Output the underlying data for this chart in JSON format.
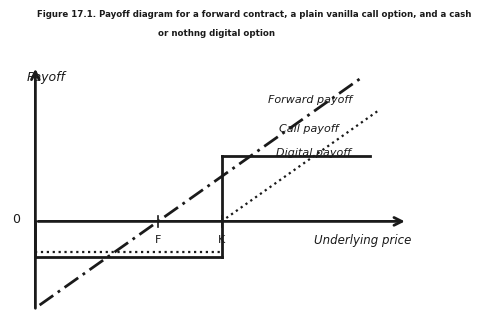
{
  "title_line1": "Figure 17.1. Payoff diagram for a forward contract, a plain vanilla call option, and a cash",
  "title_line2": "or nothng digital option",
  "xlabel": "Underlying price",
  "ylabel": "Payoff",
  "zero_label": "0",
  "F_label": "F",
  "K_label": "K",
  "forward_label": "Forward payoff",
  "call_label": "Call payoff",
  "digital_label": "Digital payoff",
  "F": 4.0,
  "K": 5.5,
  "digital_level": 2.2,
  "digital_neg": -1.2,
  "x_min": 0.8,
  "x_max": 10.5,
  "y_min": -3.5,
  "y_max": 6.0,
  "bg_color": "#ffffff",
  "line_color": "#1a1a1a"
}
